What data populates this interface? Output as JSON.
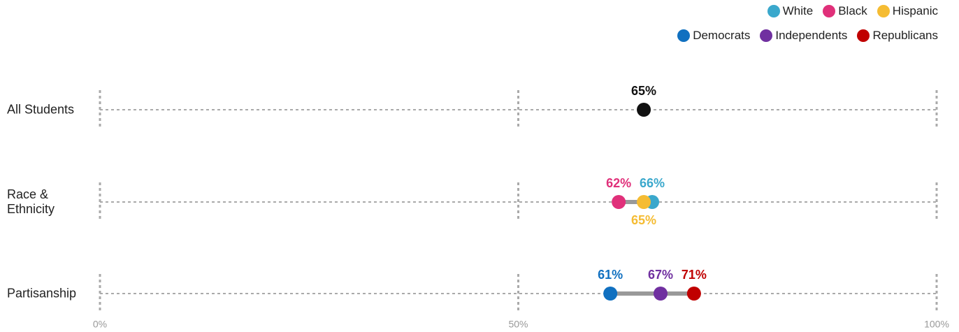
{
  "chart_data": {
    "type": "dot",
    "xlim": [
      0,
      100
    ],
    "xticks": [
      {
        "value": 0,
        "label": "0%"
      },
      {
        "value": 50,
        "label": "50%"
      },
      {
        "value": 100,
        "label": "100%"
      }
    ],
    "grid": true,
    "legend": "top-right",
    "rows": [
      {
        "label": "All Students",
        "points": [
          {
            "color": "#111111",
            "value": 65,
            "value_label": "65%"
          }
        ]
      },
      {
        "label": "Race & Ethnicity",
        "points": [
          {
            "name": "White",
            "color": "#3aa8cc",
            "value": 66,
            "value_label": "66%"
          },
          {
            "name": "Black",
            "color": "#e0307a",
            "value": 62,
            "value_label": "62%"
          },
          {
            "name": "Hispanic",
            "color": "#f5bc33",
            "value": 65,
            "value_label": "65%"
          }
        ]
      },
      {
        "label": "Partisanship",
        "points": [
          {
            "name": "Democrats",
            "color": "#1070c0",
            "value": 61,
            "value_label": "61%"
          },
          {
            "name": "Independents",
            "color": "#7030a0",
            "value": 67,
            "value_label": "67%"
          },
          {
            "name": "Republicans",
            "color": "#c00000",
            "value": 71,
            "value_label": "71%"
          }
        ]
      }
    ]
  }
}
